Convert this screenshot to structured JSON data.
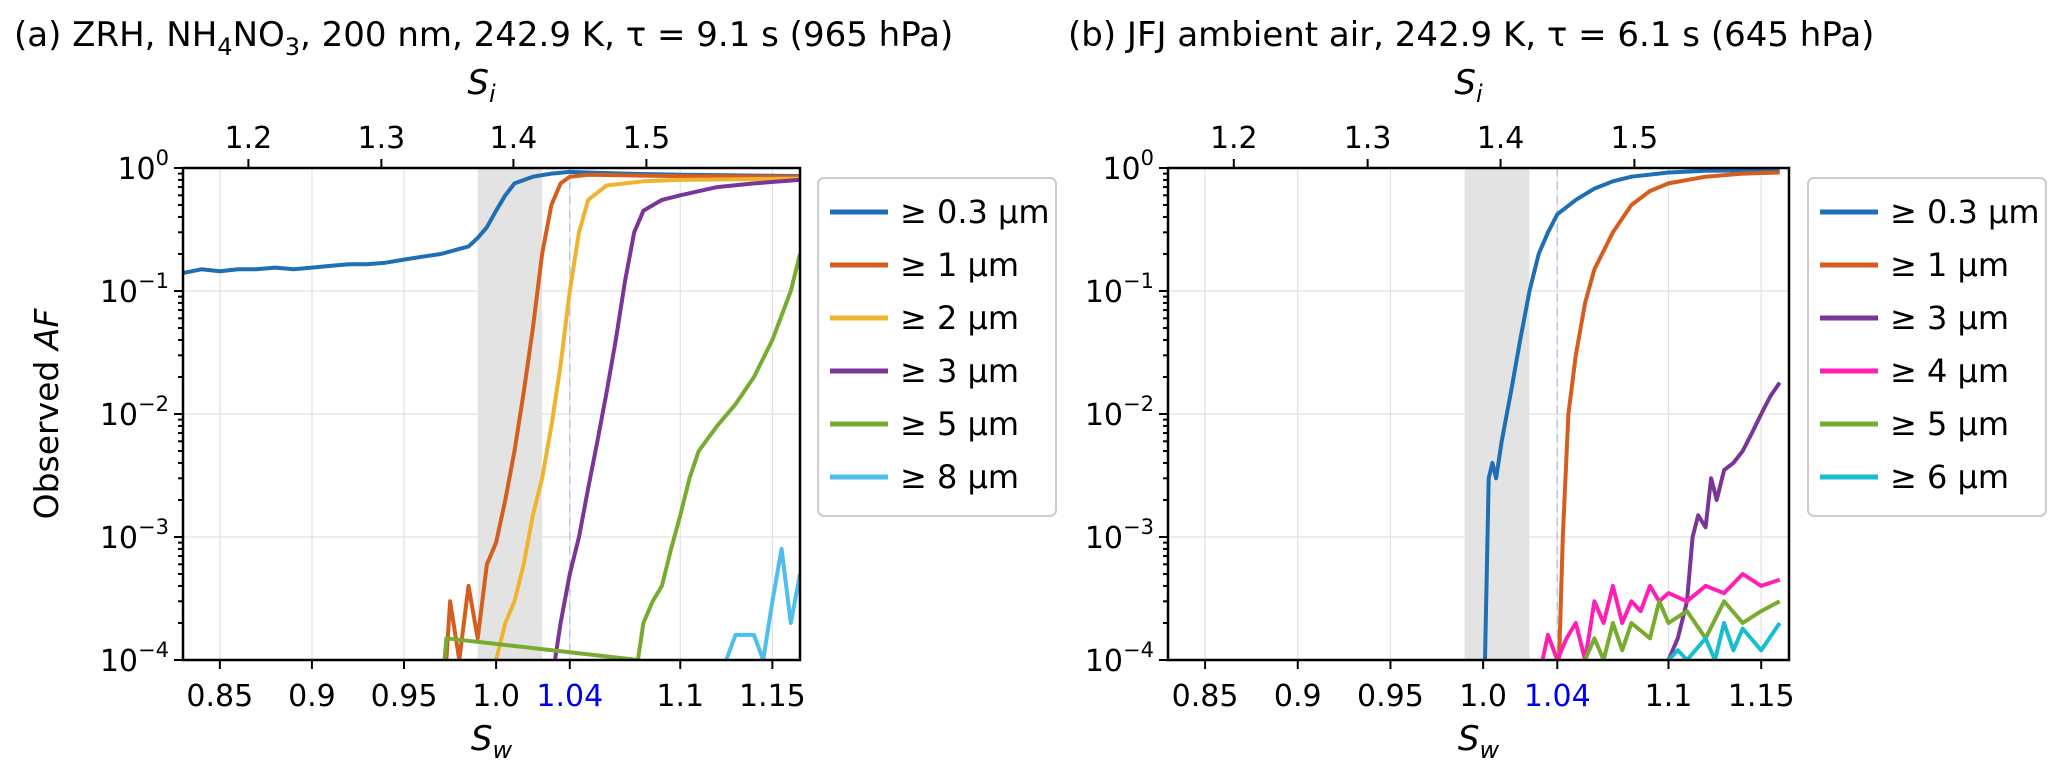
{
  "chart_data": [
    {
      "type": "line",
      "panel_id": "a",
      "title": "(a) ZRH, NH4NO3, 200 nm, 242.9 K, τ = 9.1 s (965 hPa)",
      "title_parts": {
        "pre": "(a) ZRH, NH",
        "sub1": "4",
        "mid": "NO",
        "sub2": "3",
        "post": ", 200 nm, 242.9 K, τ = 9.1 s (965 hPa)"
      },
      "xlabel": "S",
      "xlabel_sub": "w",
      "top_xlabel": "S",
      "top_xlabel_sub": "i",
      "ylabel": "Observed ",
      "ylabel_italic": "AF",
      "xlim": [
        0.83,
        1.165
      ],
      "ylim": [
        0.0001,
        1
      ],
      "yscale": "log",
      "x_ticks": [
        {
          "value": 0.85,
          "label": "0.85"
        },
        {
          "value": 0.9,
          "label": "0.9"
        },
        {
          "value": 0.95,
          "label": "0.95"
        },
        {
          "value": 1.0,
          "label": "1.0"
        },
        {
          "value": 1.04,
          "label": "1.04",
          "color": "#0000ee"
        },
        {
          "value": 1.1,
          "label": "1.1"
        },
        {
          "value": 1.15,
          "label": "1.15"
        }
      ],
      "top_ticks": [
        {
          "value": 1.2,
          "label": "1.2",
          "pos": 0.8655
        },
        {
          "value": 1.3,
          "label": "1.3",
          "pos": 0.9377
        },
        {
          "value": 1.4,
          "label": "1.4",
          "pos": 1.0094
        },
        {
          "value": 1.5,
          "label": "1.5",
          "pos": 1.0816
        }
      ],
      "y_ticks": [
        {
          "value": 1,
          "base": "10",
          "exp": "0"
        },
        {
          "value": 0.1,
          "base": "10",
          "exp": "−1"
        },
        {
          "value": 0.01,
          "base": "10",
          "exp": "−2"
        },
        {
          "value": 0.001,
          "base": "10",
          "exp": "−3"
        },
        {
          "value": 0.0001,
          "base": "10",
          "exp": "−4"
        }
      ],
      "shaded_region": [
        0.99,
        1.025
      ],
      "dashed_line": 1.04,
      "grid": true,
      "legend_position": "outside-right",
      "series": [
        {
          "name": "≥ 0.3 µm",
          "color": "#1f6fb4",
          "points": [
            [
              0.83,
              0.14
            ],
            [
              0.84,
              0.15
            ],
            [
              0.85,
              0.145
            ],
            [
              0.86,
              0.15
            ],
            [
              0.87,
              0.15
            ],
            [
              0.88,
              0.155
            ],
            [
              0.89,
              0.15
            ],
            [
              0.9,
              0.155
            ],
            [
              0.91,
              0.16
            ],
            [
              0.92,
              0.165
            ],
            [
              0.93,
              0.165
            ],
            [
              0.94,
              0.17
            ],
            [
              0.95,
              0.18
            ],
            [
              0.96,
              0.19
            ],
            [
              0.97,
              0.2
            ],
            [
              0.98,
              0.22
            ],
            [
              0.985,
              0.23
            ],
            [
              0.99,
              0.27
            ],
            [
              0.995,
              0.33
            ],
            [
              1.0,
              0.45
            ],
            [
              1.005,
              0.6
            ],
            [
              1.01,
              0.75
            ],
            [
              1.02,
              0.85
            ],
            [
              1.03,
              0.9
            ],
            [
              1.04,
              0.93
            ],
            [
              1.05,
              0.92
            ],
            [
              1.07,
              0.9
            ],
            [
              1.1,
              0.88
            ],
            [
              1.13,
              0.87
            ],
            [
              1.165,
              0.86
            ]
          ]
        },
        {
          "name": "≥ 1 µm",
          "color": "#d55e1f",
          "points": [
            [
              0.973,
              0.0001
            ],
            [
              0.975,
              0.0003
            ],
            [
              0.98,
              0.0001
            ],
            [
              0.985,
              0.0004
            ],
            [
              0.99,
              0.00015
            ],
            [
              0.995,
              0.0006
            ],
            [
              1.0,
              0.0009
            ],
            [
              1.005,
              0.002
            ],
            [
              1.01,
              0.005
            ],
            [
              1.015,
              0.015
            ],
            [
              1.02,
              0.05
            ],
            [
              1.025,
              0.2
            ],
            [
              1.03,
              0.5
            ],
            [
              1.035,
              0.75
            ],
            [
              1.04,
              0.85
            ],
            [
              1.05,
              0.88
            ],
            [
              1.1,
              0.86
            ],
            [
              1.165,
              0.85
            ]
          ]
        },
        {
          "name": "≥ 2 µm",
          "color": "#efb42f",
          "points": [
            [
              1.0,
              0.0001
            ],
            [
              1.005,
              0.0002
            ],
            [
              1.01,
              0.0003
            ],
            [
              1.015,
              0.0006
            ],
            [
              1.02,
              0.0015
            ],
            [
              1.025,
              0.003
            ],
            [
              1.03,
              0.008
            ],
            [
              1.035,
              0.025
            ],
            [
              1.04,
              0.1
            ],
            [
              1.045,
              0.3
            ],
            [
              1.05,
              0.55
            ],
            [
              1.06,
              0.72
            ],
            [
              1.08,
              0.78
            ],
            [
              1.1,
              0.8
            ],
            [
              1.165,
              0.82
            ]
          ]
        },
        {
          "name": "≥ 3 µm",
          "color": "#7a3596",
          "points": [
            [
              1.032,
              0.0001
            ],
            [
              1.035,
              0.0002
            ],
            [
              1.04,
              0.0005
            ],
            [
              1.045,
              0.001
            ],
            [
              1.05,
              0.0025
            ],
            [
              1.055,
              0.006
            ],
            [
              1.06,
              0.015
            ],
            [
              1.065,
              0.04
            ],
            [
              1.07,
              0.12
            ],
            [
              1.075,
              0.3
            ],
            [
              1.08,
              0.45
            ],
            [
              1.09,
              0.55
            ],
            [
              1.1,
              0.6
            ],
            [
              1.12,
              0.7
            ],
            [
              1.14,
              0.75
            ],
            [
              1.165,
              0.8
            ]
          ]
        },
        {
          "name": "≥ 5 µm",
          "color": "#77ac30",
          "points": [
            [
              0.972,
              0.0001
            ],
            [
              0.973,
              0.00015
            ],
            [
              1.077,
              0.0001
            ],
            [
              1.08,
              0.0002
            ],
            [
              1.085,
              0.0003
            ],
            [
              1.09,
              0.0004
            ],
            [
              1.095,
              0.0008
            ],
            [
              1.1,
              0.0015
            ],
            [
              1.105,
              0.003
            ],
            [
              1.11,
              0.005
            ],
            [
              1.12,
              0.008
            ],
            [
              1.13,
              0.012
            ],
            [
              1.14,
              0.02
            ],
            [
              1.15,
              0.04
            ],
            [
              1.16,
              0.1
            ],
            [
              1.165,
              0.2
            ]
          ]
        },
        {
          "name": "≥ 8 µm",
          "color": "#4dbeee",
          "points": [
            [
              1.125,
              0.0001
            ],
            [
              1.13,
              0.00016
            ],
            [
              1.14,
              0.00016
            ],
            [
              1.145,
              0.0001
            ],
            [
              1.15,
              0.0003
            ],
            [
              1.155,
              0.0008
            ],
            [
              1.16,
              0.0002
            ],
            [
              1.165,
              0.0005
            ]
          ]
        }
      ]
    },
    {
      "type": "line",
      "panel_id": "b",
      "title": "(b) JFJ ambient air, 242.9 K, τ = 6.1 s (645 hPa)",
      "xlabel": "S",
      "xlabel_sub": "w",
      "top_xlabel": "S",
      "top_xlabel_sub": "i",
      "xlim": [
        0.83,
        1.165
      ],
      "ylim": [
        0.0001,
        1
      ],
      "yscale": "log",
      "x_ticks": [
        {
          "value": 0.85,
          "label": "0.85"
        },
        {
          "value": 0.9,
          "label": "0.9"
        },
        {
          "value": 0.95,
          "label": "0.95"
        },
        {
          "value": 1.0,
          "label": "1.0"
        },
        {
          "value": 1.04,
          "label": "1.04",
          "color": "#0000ee"
        },
        {
          "value": 1.1,
          "label": "1.1"
        },
        {
          "value": 1.15,
          "label": "1.15"
        }
      ],
      "top_ticks": [
        {
          "value": 1.2,
          "label": "1.2",
          "pos": 0.8655
        },
        {
          "value": 1.3,
          "label": "1.3",
          "pos": 0.9377
        },
        {
          "value": 1.4,
          "label": "1.4",
          "pos": 1.0094
        },
        {
          "value": 1.5,
          "label": "1.5",
          "pos": 1.0816
        }
      ],
      "y_ticks": [
        {
          "value": 1,
          "base": "10",
          "exp": "0"
        },
        {
          "value": 0.1,
          "base": "10",
          "exp": "−1"
        },
        {
          "value": 0.01,
          "base": "10",
          "exp": "−2"
        },
        {
          "value": 0.001,
          "base": "10",
          "exp": "−3"
        },
        {
          "value": 0.0001,
          "base": "10",
          "exp": "−4"
        }
      ],
      "shaded_region": [
        0.99,
        1.025
      ],
      "dashed_line": 1.04,
      "grid": true,
      "legend_position": "outside-right",
      "series": [
        {
          "name": "≥ 0.3 µm",
          "color": "#1f6fb4",
          "points": [
            [
              1.001,
              0.0001
            ],
            [
              1.003,
              0.003
            ],
            [
              1.005,
              0.004
            ],
            [
              1.007,
              0.003
            ],
            [
              1.01,
              0.006
            ],
            [
              1.015,
              0.015
            ],
            [
              1.02,
              0.04
            ],
            [
              1.025,
              0.1
            ],
            [
              1.03,
              0.2
            ],
            [
              1.035,
              0.3
            ],
            [
              1.04,
              0.42
            ],
            [
              1.05,
              0.55
            ],
            [
              1.06,
              0.68
            ],
            [
              1.07,
              0.78
            ],
            [
              1.08,
              0.85
            ],
            [
              1.1,
              0.92
            ],
            [
              1.12,
              0.95
            ],
            [
              1.16,
              0.96
            ]
          ]
        },
        {
          "name": "≥ 1 µm",
          "color": "#d55e1f",
          "points": [
            [
              1.041,
              0.0001
            ],
            [
              1.043,
              0.001
            ],
            [
              1.046,
              0.01
            ],
            [
              1.05,
              0.03
            ],
            [
              1.055,
              0.08
            ],
            [
              1.06,
              0.15
            ],
            [
              1.07,
              0.3
            ],
            [
              1.08,
              0.5
            ],
            [
              1.09,
              0.65
            ],
            [
              1.1,
              0.75
            ],
            [
              1.12,
              0.85
            ],
            [
              1.14,
              0.9
            ],
            [
              1.16,
              0.92
            ]
          ]
        },
        {
          "name": "≥ 3 µm",
          "color": "#7a3596",
          "points": [
            [
              1.1,
              0.0001
            ],
            [
              1.105,
              0.00015
            ],
            [
              1.11,
              0.0003
            ],
            [
              1.113,
              0.001
            ],
            [
              1.116,
              0.0015
            ],
            [
              1.12,
              0.0012
            ],
            [
              1.123,
              0.003
            ],
            [
              1.126,
              0.002
            ],
            [
              1.13,
              0.0035
            ],
            [
              1.135,
              0.004
            ],
            [
              1.14,
              0.005
            ],
            [
              1.145,
              0.007
            ],
            [
              1.15,
              0.01
            ],
            [
              1.155,
              0.014
            ],
            [
              1.16,
              0.018
            ]
          ]
        },
        {
          "name": "≥ 4 µm",
          "color": "#ff1fb4",
          "points": [
            [
              1.032,
              0.0001
            ],
            [
              1.035,
              0.00016
            ],
            [
              1.04,
              0.0001
            ],
            [
              1.045,
              0.00015
            ],
            [
              1.05,
              0.0002
            ],
            [
              1.055,
              0.0001
            ],
            [
              1.06,
              0.0003
            ],
            [
              1.065,
              0.0002
            ],
            [
              1.07,
              0.0004
            ],
            [
              1.075,
              0.0002
            ],
            [
              1.08,
              0.0003
            ],
            [
              1.085,
              0.00025
            ],
            [
              1.09,
              0.0004
            ],
            [
              1.095,
              0.0003
            ],
            [
              1.1,
              0.00035
            ],
            [
              1.11,
              0.0003
            ],
            [
              1.12,
              0.0004
            ],
            [
              1.13,
              0.00035
            ],
            [
              1.14,
              0.0005
            ],
            [
              1.15,
              0.0004
            ],
            [
              1.16,
              0.00045
            ]
          ]
        },
        {
          "name": "≥ 5 µm",
          "color": "#77ac30",
          "points": [
            [
              1.055,
              0.0001
            ],
            [
              1.06,
              0.00015
            ],
            [
              1.065,
              0.0001
            ],
            [
              1.07,
              0.0002
            ],
            [
              1.075,
              0.00012
            ],
            [
              1.08,
              0.0002
            ],
            [
              1.09,
              0.00015
            ],
            [
              1.095,
              0.0003
            ],
            [
              1.1,
              0.0002
            ],
            [
              1.11,
              0.00025
            ],
            [
              1.12,
              0.00015
            ],
            [
              1.13,
              0.0003
            ],
            [
              1.14,
              0.0002
            ],
            [
              1.15,
              0.00025
            ],
            [
              1.16,
              0.0003
            ]
          ]
        },
        {
          "name": "≥ 6 µm",
          "color": "#17becf",
          "points": [
            [
              1.1,
              0.0001
            ],
            [
              1.105,
              0.00012
            ],
            [
              1.11,
              0.0001
            ],
            [
              1.12,
              0.00015
            ],
            [
              1.125,
              0.0001
            ],
            [
              1.13,
              0.0002
            ],
            [
              1.135,
              0.00012
            ],
            [
              1.14,
              0.00018
            ],
            [
              1.15,
              0.00012
            ],
            [
              1.16,
              0.0002
            ]
          ]
        }
      ]
    }
  ]
}
